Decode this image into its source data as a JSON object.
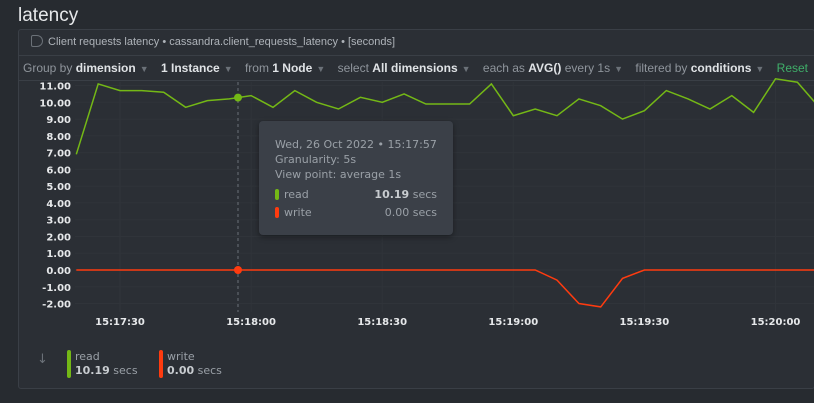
{
  "title": "latency",
  "chart_header": {
    "text": "Client requests latency • cassandra.client_requests_latency • [seconds]"
  },
  "toolbar": {
    "group_by_label": "Group by",
    "group_by_value": "dimension",
    "instances": "1 Instance",
    "from_label": "from",
    "from_value": "1 Node",
    "select_label": "select",
    "select_value": "All dimensions",
    "each_as_label": "each as",
    "each_as_value": "AVG()",
    "every": "every 1s",
    "filtered_label": "filtered by",
    "filtered_value": "conditions",
    "reset": "Reset"
  },
  "tooltip": {
    "date": "Wed, 26 Oct 2022 • 15:17:57",
    "granularity": "Granularity: 5s",
    "view_point": "View point: average 1s",
    "rows": [
      {
        "name": "read",
        "value": "10.19",
        "unit": "secs",
        "color": "#74b816"
      },
      {
        "name": "write",
        "value": "0.00",
        "unit": "secs",
        "color": "#ff3b0f"
      }
    ]
  },
  "legend": {
    "items": [
      {
        "name": "read",
        "value": "10.19",
        "unit": "secs",
        "color": "#74b816"
      },
      {
        "name": "write",
        "value": "0.00",
        "unit": "secs",
        "color": "#ff3b0f"
      }
    ]
  },
  "chart_data": {
    "type": "line",
    "ylim": [
      -2,
      11.5
    ],
    "yticks": [
      "11.00",
      "10.00",
      "9.00",
      "8.00",
      "7.00",
      "6.00",
      "5.00",
      "4.00",
      "3.00",
      "2.00",
      "1.00",
      "0.00",
      "-1.00",
      "-2.00"
    ],
    "xticks": [
      "15:17:30",
      "15:18:00",
      "15:18:30",
      "15:19:00",
      "15:19:30",
      "15:20:00"
    ],
    "x_start": "15:17:20",
    "x_step_seconds": 5,
    "hover_time": "15:17:57",
    "series": [
      {
        "name": "read",
        "color": "#74b816",
        "values": [
          6.9,
          11.1,
          10.7,
          10.7,
          10.6,
          9.7,
          10.1,
          10.2,
          10.4,
          9.7,
          10.7,
          10.0,
          9.6,
          10.3,
          10.0,
          10.5,
          9.9,
          9.9,
          9.9,
          11.1,
          9.2,
          9.6,
          9.2,
          10.2,
          9.8,
          9.0,
          9.5,
          10.7,
          10.2,
          9.6,
          10.4,
          9.4,
          11.4,
          11.2,
          9.7
        ]
      },
      {
        "name": "write",
        "color": "#ff3b0f",
        "values": [
          0,
          0,
          0,
          0,
          0,
          0,
          0,
          0,
          0,
          0,
          0,
          0,
          0,
          0,
          0,
          0,
          0,
          0,
          0,
          0,
          0,
          0,
          -0.6,
          -2.0,
          -2.2,
          -0.5,
          0,
          0,
          0,
          0,
          0,
          0,
          0,
          0,
          0
        ]
      }
    ]
  }
}
